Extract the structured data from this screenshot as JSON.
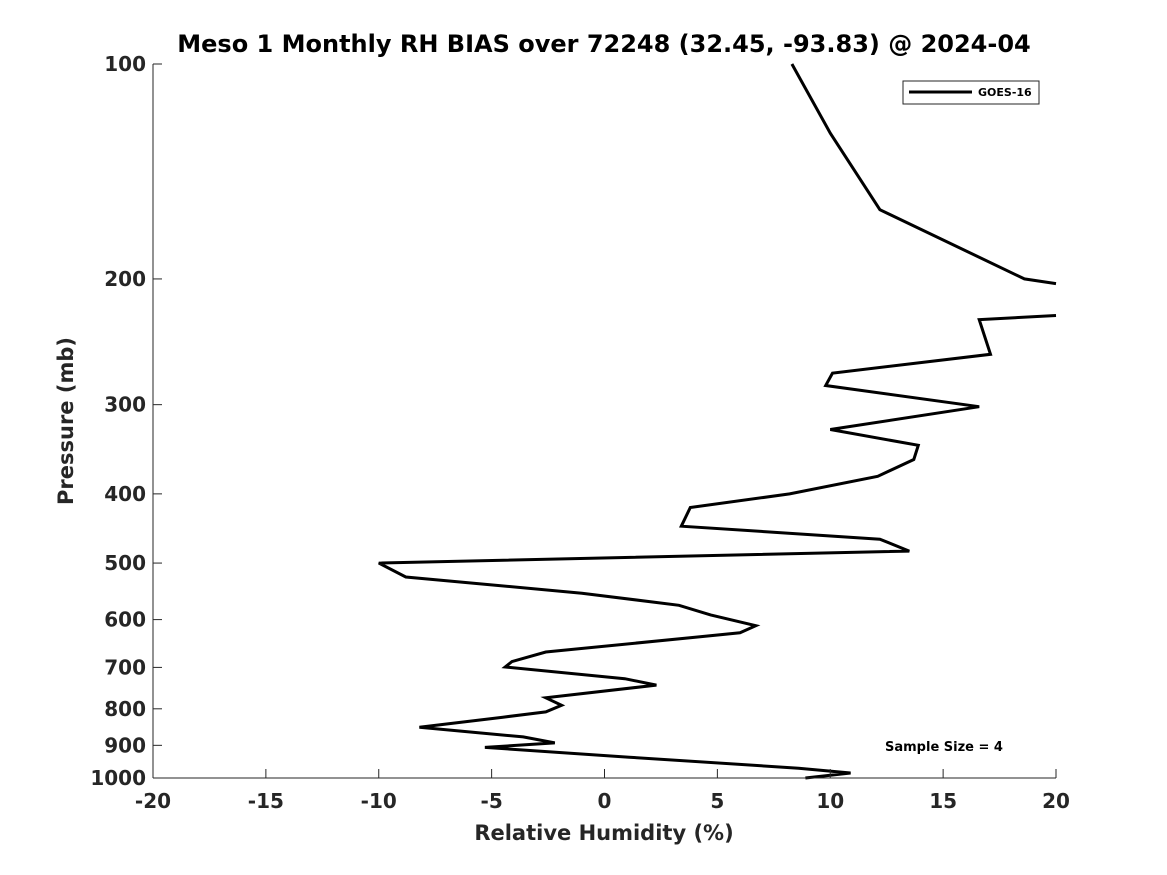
{
  "chart_data": {
    "type": "line",
    "title": "Meso 1 Monthly RH BIAS over 72248 (32.45, -93.83) @ 2024-04",
    "xlabel": "Relative Humidity (%)",
    "ylabel": "Pressure (mb)",
    "xlim": [
      -20,
      20
    ],
    "ylim": [
      100,
      1000
    ],
    "y_scale": "log",
    "y_reversed": true,
    "x_ticks": [
      -20,
      -15,
      -10,
      -5,
      0,
      5,
      10,
      15,
      20
    ],
    "x_tick_labels": [
      "-20",
      "-15",
      "-10",
      "-5",
      "0",
      "5",
      "10",
      "15",
      "20"
    ],
    "y_ticks": [
      100,
      200,
      300,
      400,
      500,
      600,
      700,
      800,
      900,
      1000
    ],
    "y_tick_labels": [
      "100",
      "200",
      "300",
      "400",
      "500",
      "600",
      "700",
      "800",
      "900",
      "1000"
    ],
    "grid": false,
    "legend_position": "top-right",
    "series": [
      {
        "name": "GOES-16",
        "color": "#000000",
        "segments": [
          [
            [
              8.3,
              100
            ],
            [
              10.0,
              125
            ],
            [
              12.2,
              160
            ],
            [
              18.6,
              200
            ],
            [
              20.0,
              203
            ]
          ],
          [
            [
              20.0,
              225
            ],
            [
              16.6,
              228
            ],
            [
              17.1,
              255
            ],
            [
              10.1,
              271
            ],
            [
              9.8,
              282
            ],
            [
              16.6,
              302
            ],
            [
              10.0,
              325
            ],
            [
              13.9,
              342
            ],
            [
              13.7,
              358
            ],
            [
              12.1,
              378
            ],
            [
              8.2,
              400
            ],
            [
              3.8,
              418
            ],
            [
              3.4,
              444
            ],
            [
              12.2,
              463
            ],
            [
              13.5,
              481
            ],
            [
              -10.0,
              500
            ],
            [
              -8.8,
              523
            ],
            [
              -1.0,
              551
            ],
            [
              3.3,
              573
            ],
            [
              4.7,
              591
            ],
            [
              6.7,
              612
            ],
            [
              6.0,
              626
            ],
            [
              -2.6,
              666
            ],
            [
              -4.1,
              687
            ],
            [
              -4.4,
              699
            ],
            [
              0.9,
              726
            ],
            [
              2.3,
              741
            ],
            [
              -2.6,
              772
            ],
            [
              -1.9,
              791
            ],
            [
              -2.6,
              808
            ],
            [
              -4.5,
              822
            ],
            [
              -8.2,
              849
            ],
            [
              -3.6,
              876
            ],
            [
              -2.2,
              893
            ],
            [
              -5.3,
              906
            ],
            [
              1.1,
              935
            ],
            [
              8.6,
              969
            ],
            [
              10.9,
              984
            ],
            [
              8.9,
              1000
            ]
          ]
        ]
      }
    ],
    "annotations": [
      "Sample Size = 4"
    ]
  }
}
